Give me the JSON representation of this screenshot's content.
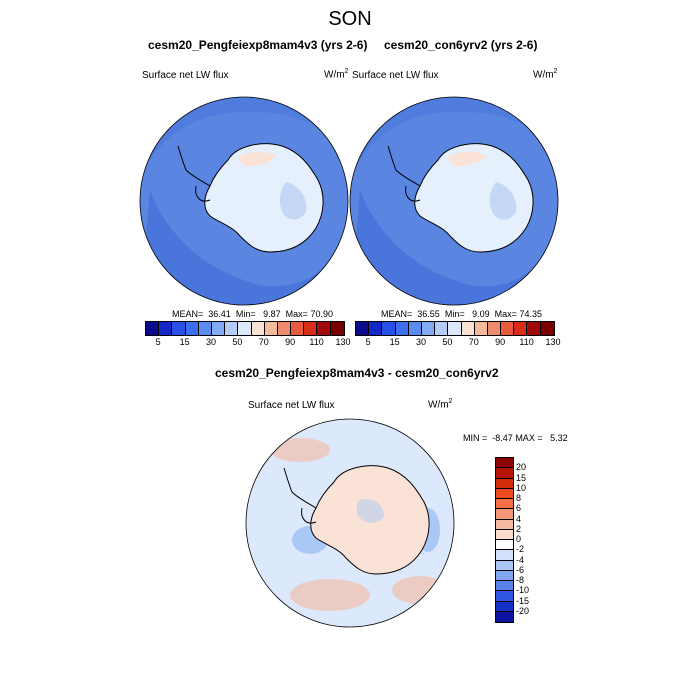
{
  "title": "SON",
  "chart_data": [
    {
      "type": "heatmap",
      "projection": "south-polar-stereographic",
      "title": "cesm20_Pengfeiexp8mam4v3 (yrs 2-6)",
      "variable": "Surface net LW flux",
      "units_base": "W/m",
      "units_exp": "2",
      "stats": {
        "mean_label": "MEAN=",
        "mean": "36.41",
        "min_label": "Min=",
        "min": "9.87",
        "max_label": "Max=",
        "max": "70.90"
      },
      "colorbar": {
        "levels": [
          5,
          15,
          30,
          50,
          70,
          90,
          110,
          130
        ],
        "colors": [
          "#0a0a8a",
          "#1428c8",
          "#2850e6",
          "#3c6ef0",
          "#5a8cf0",
          "#82aaf5",
          "#b4cdf8",
          "#dce8fc",
          "#fae1d2",
          "#f5b99b",
          "#f08c6e",
          "#eb5a3c",
          "#d72d19",
          "#a00a0a",
          "#780000"
        ]
      },
      "regions": {
        "ocean": "#5a86e2",
        "coast": "#4a76dc",
        "ice": "#e6effc",
        "ice_warm": "#fae3d6",
        "ice_cool": "#c4d8f6"
      }
    },
    {
      "type": "heatmap",
      "projection": "south-polar-stereographic",
      "title": "cesm20_con6yrv2 (yrs 2-6)",
      "variable": "Surface net LW flux",
      "units_base": "W/m",
      "units_exp": "2",
      "stats": {
        "mean_label": "MEAN=",
        "mean": "36.55",
        "min_label": "Min=",
        "min": "9.09",
        "max_label": "Max=",
        "max": "74.35"
      },
      "colorbar": {
        "levels": [
          5,
          15,
          30,
          50,
          70,
          90,
          110,
          130
        ],
        "colors": [
          "#0a0a8a",
          "#1428c8",
          "#2850e6",
          "#3c6ef0",
          "#5a8cf0",
          "#82aaf5",
          "#b4cdf8",
          "#dce8fc",
          "#fae1d2",
          "#f5b99b",
          "#f08c6e",
          "#eb5a3c",
          "#d72d19",
          "#a00a0a",
          "#780000"
        ]
      },
      "regions": {
        "ocean": "#5a86e2",
        "coast": "#4a76dc",
        "ice": "#e6effc",
        "ice_warm": "#fae3d6",
        "ice_cool": "#c4d8f6"
      }
    },
    {
      "type": "heatmap",
      "projection": "south-polar-stereographic",
      "title": "cesm20_Pengfeiexp8mam4v3 - cesm20_con6yrv2",
      "variable": "Surface net LW flux",
      "units_base": "W/m",
      "units_exp": "2",
      "stats": {
        "min_label": "MIN =",
        "min": "-8.47",
        "max_label": "MAX =",
        "max": "5.32"
      },
      "colorbar": {
        "levels": [
          20,
          15,
          10,
          8,
          6,
          4,
          2,
          0,
          -2,
          -4,
          -6,
          -8,
          -10,
          -15,
          -20
        ],
        "colors": [
          "#8c0000",
          "#b41400",
          "#d22d0a",
          "#eb4b1e",
          "#f56e46",
          "#f59678",
          "#f5b9a0",
          "#fadccd",
          "#ffffff",
          "#d2e1fa",
          "#aac8f5",
          "#82a5f0",
          "#5a82eb",
          "#2d55e1",
          "#1432c8",
          "#0a14a0"
        ]
      },
      "regions": {
        "ocean": "#dce8fc",
        "coast": "#b8cef7",
        "ice": "#fae3d6",
        "ice_warm": "#f5b9a0",
        "ice_cool": "#aac8f5"
      }
    }
  ]
}
